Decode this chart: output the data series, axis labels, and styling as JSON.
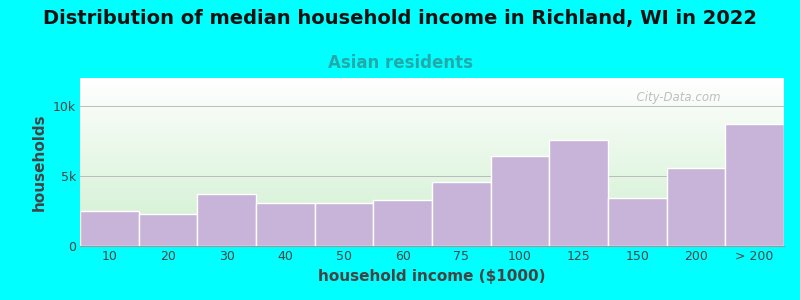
{
  "title": "Distribution of median household income in Richland, WI in 2022",
  "subtitle": "Asian residents",
  "xlabel": "household income ($1000)",
  "ylabel": "households",
  "background_color": "#00FFFF",
  "bar_color": "#c8b4d8",
  "bar_edge_color": "#ffffff",
  "categories": [
    "10",
    "20",
    "30",
    "40",
    "50",
    "60",
    "75",
    "100",
    "125",
    "150",
    "200",
    "> 200"
  ],
  "values": [
    2500,
    2300,
    3700,
    3100,
    3100,
    3300,
    4600,
    6400,
    7600,
    3400,
    5600,
    8700
  ],
  "ylim": [
    0,
    12000
  ],
  "yticks": [
    0,
    5000,
    10000
  ],
  "ytick_labels": [
    "0",
    "5k",
    "10k"
  ],
  "watermark": "  City-Data.com",
  "title_fontsize": 14,
  "subtitle_fontsize": 12,
  "axis_label_fontsize": 11,
  "tick_fontsize": 9,
  "grid_color": "#bbbbbb",
  "title_color": "#111111",
  "subtitle_color": "#22aaaa",
  "axis_label_color": "#444444"
}
